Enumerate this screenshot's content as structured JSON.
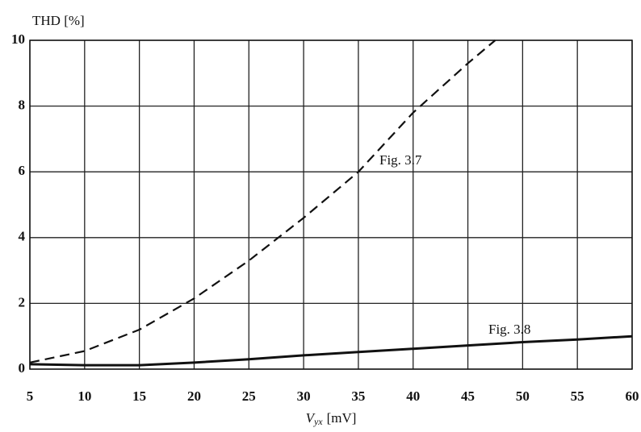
{
  "chart_data": {
    "type": "line",
    "y_label": "THD [%]",
    "x_label": {
      "symbol": "V",
      "subscript": "yx",
      "unit": "[mV]"
    },
    "xlim": [
      5,
      60
    ],
    "ylim": [
      0,
      10
    ],
    "xticks": [
      5,
      10,
      15,
      20,
      25,
      30,
      35,
      40,
      45,
      50,
      55,
      60
    ],
    "yticks": [
      0,
      2,
      4,
      6,
      8,
      10
    ],
    "grid": true,
    "series": [
      {
        "name": "Fig. 3.7",
        "color": "#111111",
        "dash": true,
        "x": [
          5,
          10,
          15,
          20,
          25,
          30,
          35,
          40,
          45,
          47.5
        ],
        "values": [
          0.2,
          0.55,
          1.2,
          2.15,
          3.3,
          4.6,
          6.0,
          7.8,
          9.3,
          10
        ]
      },
      {
        "name": "Fig. 3.8",
        "color": "#111111",
        "dash": false,
        "x": [
          5,
          10,
          15,
          20,
          25,
          30,
          35,
          40,
          45,
          50,
          55,
          60
        ],
        "values": [
          0.15,
          0.12,
          0.12,
          0.2,
          0.3,
          0.42,
          0.52,
          0.62,
          0.72,
          0.82,
          0.9,
          1.0
        ]
      }
    ]
  }
}
